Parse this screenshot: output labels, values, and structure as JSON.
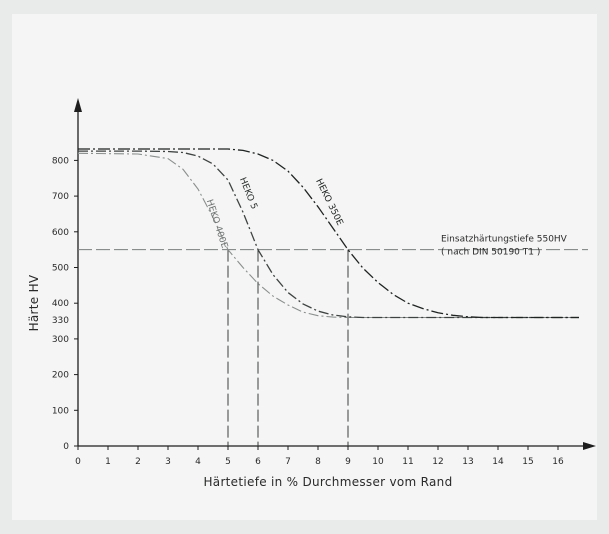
{
  "chart_data": {
    "type": "line",
    "xlabel": "Härtetiefe in % Durchmesser vom Rand",
    "ylabel": "Härte  HV",
    "xlim": [
      0,
      17
    ],
    "ylim": [
      0,
      870
    ],
    "x_ticks": [
      0,
      1,
      2,
      3,
      4,
      5,
      6,
      7,
      8,
      9,
      10,
      11,
      12,
      13,
      14,
      15,
      16
    ],
    "y_ticks": [
      0,
      100,
      200,
      300,
      400,
      500,
      600,
      700,
      800
    ],
    "extra_y_tick": "330",
    "grid": false,
    "threshold": {
      "y": 550,
      "label_line1": "Einsatzhärtungstiefe 550HV",
      "label_line2": "( nach DIN 50190 T1 )",
      "x_end": 17
    },
    "series": [
      {
        "name": "HEKO 400E",
        "color": "#8a8f8e",
        "x": [
          0,
          2,
          3,
          3.5,
          4,
          4.5,
          5,
          5.5,
          6,
          6.5,
          7,
          7.5,
          8,
          8.5,
          9,
          9.5,
          10,
          11,
          12,
          13,
          14,
          15,
          16,
          16.7
        ],
        "y": [
          820,
          818,
          805,
          775,
          720,
          640,
          550,
          500,
          455,
          420,
          395,
          375,
          365,
          361,
          360,
          360,
          360,
          360,
          360,
          360,
          360,
          360,
          360,
          360
        ]
      },
      {
        "name": "HEKO 5",
        "color": "#3e4342",
        "x": [
          0,
          2,
          3,
          3.5,
          4,
          4.5,
          5,
          5.5,
          6,
          6.5,
          7,
          7.5,
          8,
          8.5,
          9,
          9.5,
          10,
          11,
          12,
          13,
          14,
          15,
          16,
          16.7
        ],
        "y": [
          826,
          826,
          825,
          822,
          812,
          790,
          745,
          655,
          550,
          480,
          430,
          398,
          378,
          367,
          362,
          360,
          360,
          360,
          360,
          360,
          360,
          360,
          360,
          360
        ]
      },
      {
        "name": "HEKO 350E",
        "color": "#1f2322",
        "x": [
          0,
          2,
          3,
          4,
          5,
          5.5,
          6,
          6.5,
          7,
          7.5,
          8,
          8.5,
          9,
          9.5,
          10,
          10.5,
          11,
          11.5,
          12,
          12.5,
          13,
          13.5,
          14,
          15,
          16,
          16.7
        ],
        "y": [
          832,
          832,
          832,
          832,
          832,
          828,
          818,
          800,
          770,
          725,
          670,
          610,
          550,
          498,
          458,
          425,
          400,
          385,
          373,
          366,
          362,
          360,
          360,
          360,
          360,
          360
        ]
      }
    ],
    "markers": [
      {
        "x": 5,
        "series": "HEKO 400E"
      },
      {
        "x": 6,
        "series": "HEKO 5"
      },
      {
        "x": 9,
        "series": "HEKO 350E"
      }
    ]
  }
}
